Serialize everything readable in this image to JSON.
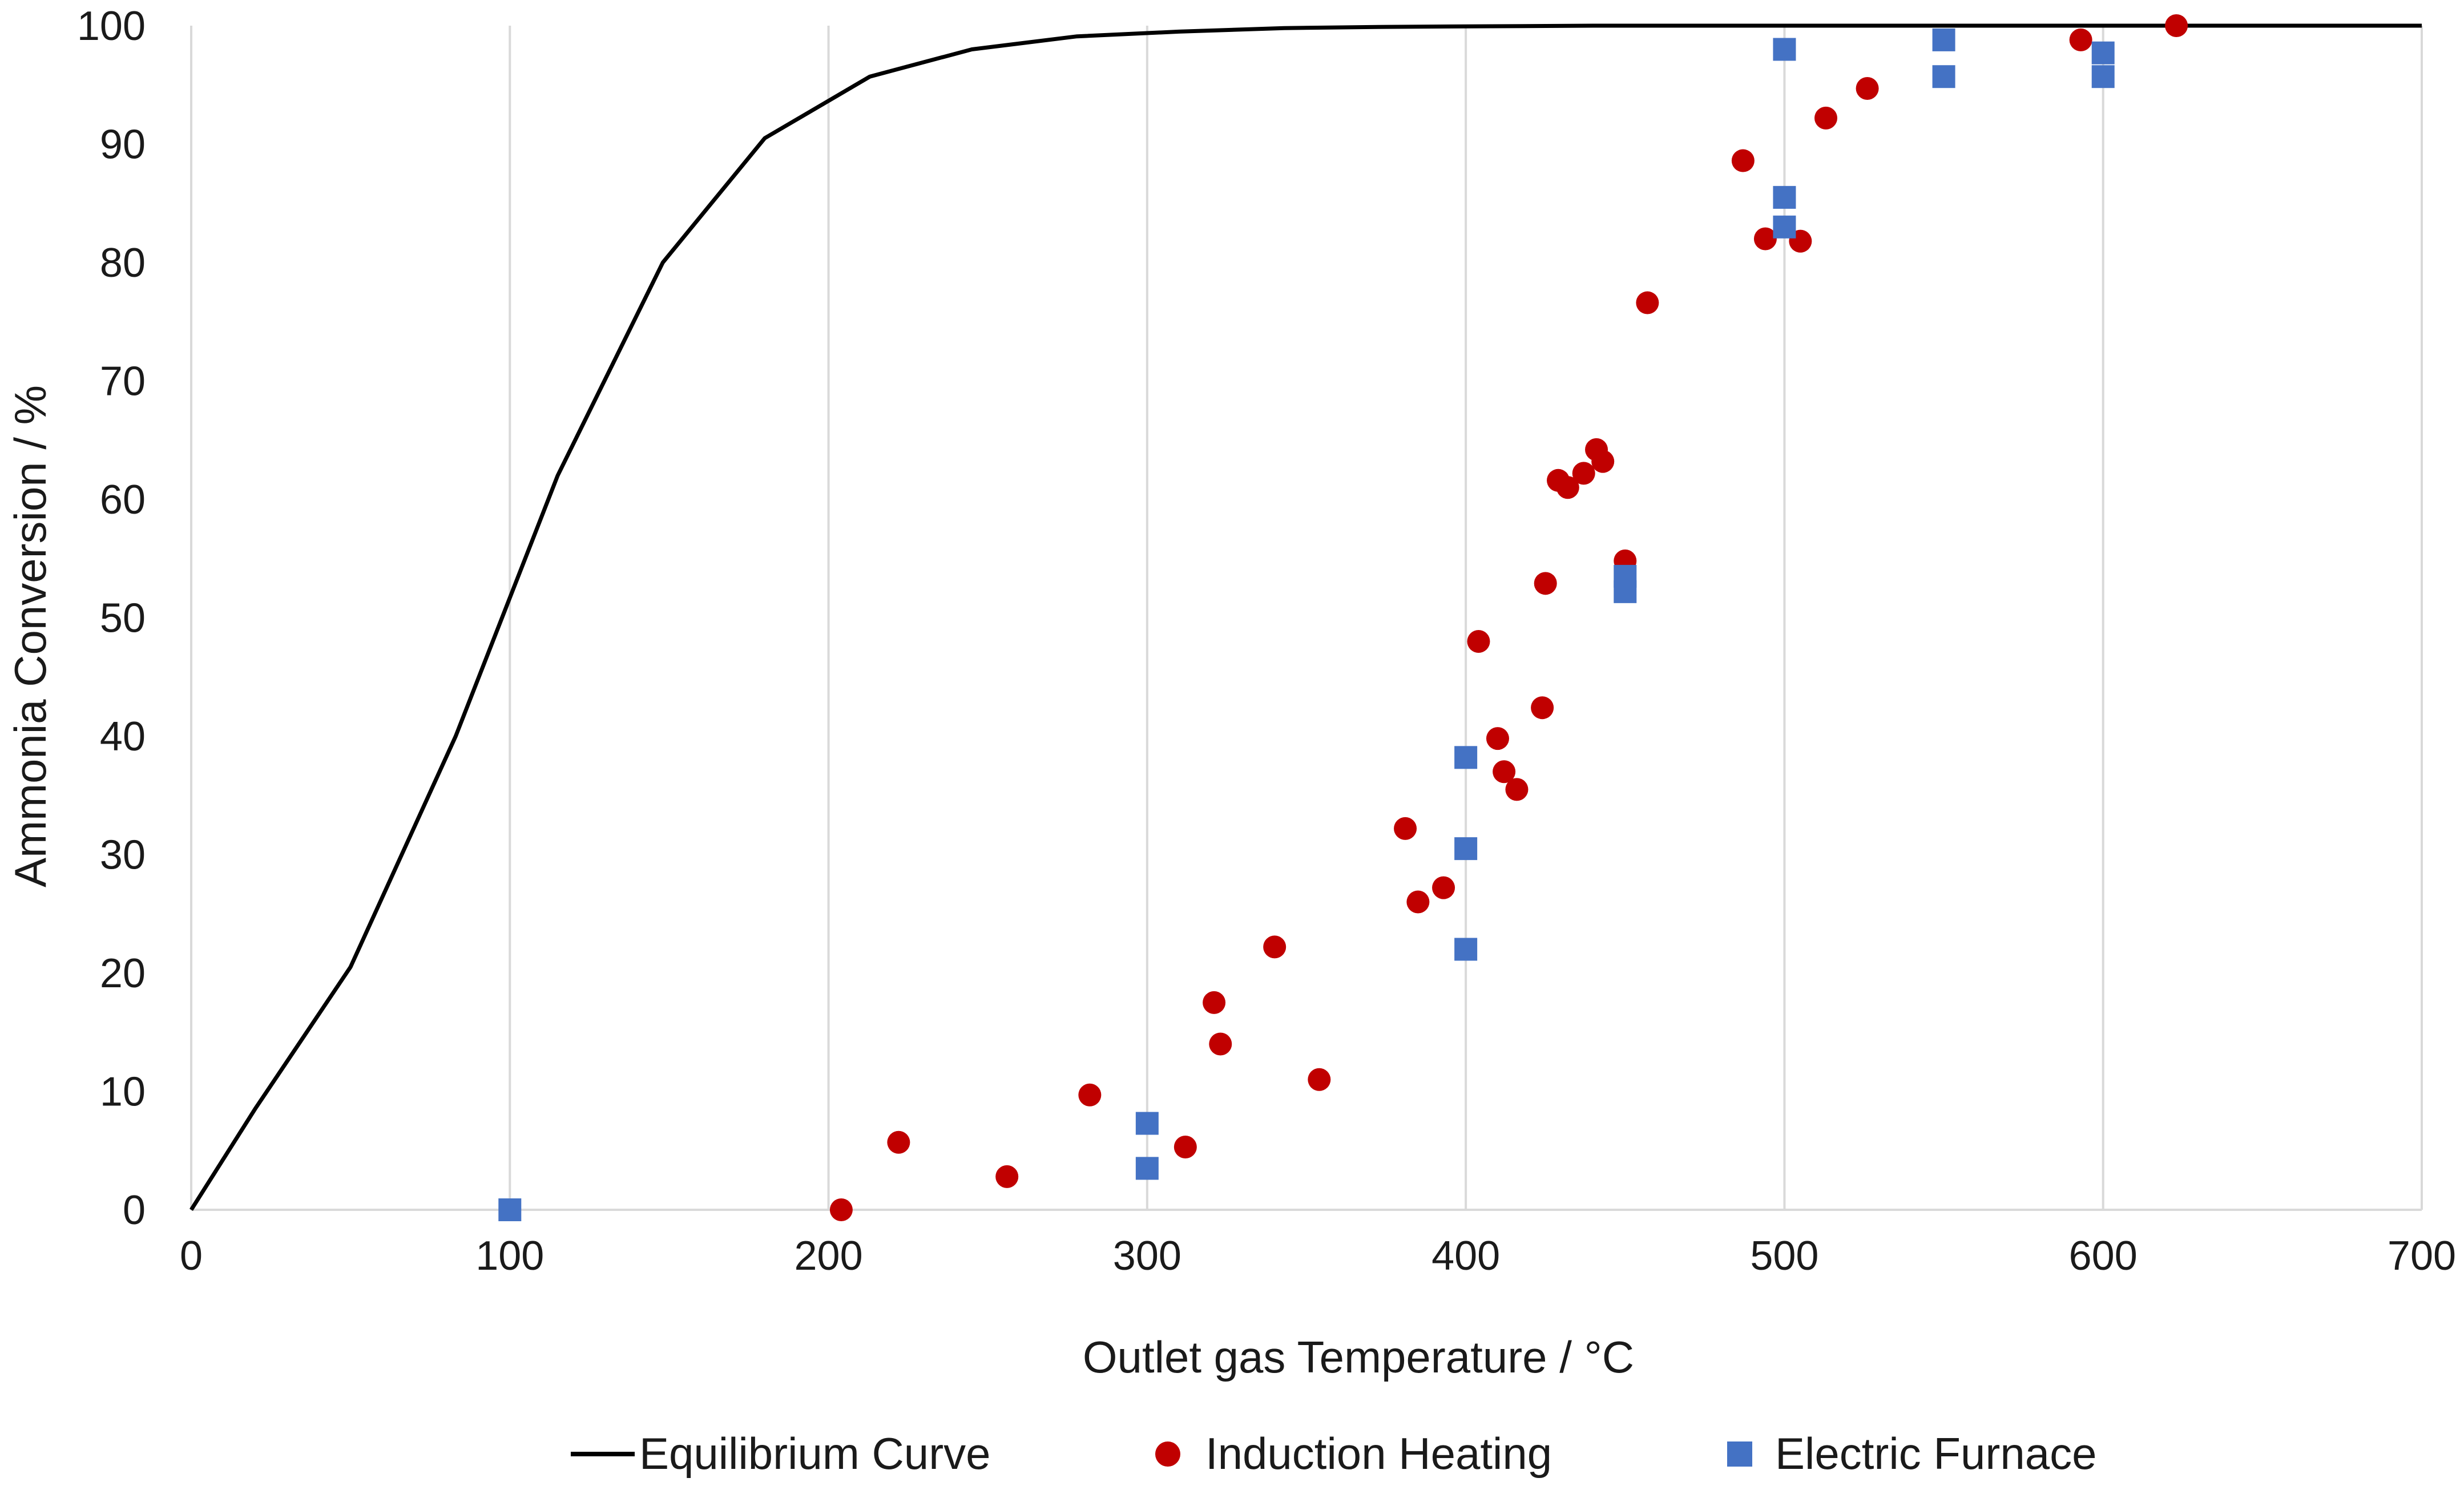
{
  "chart_data": {
    "type": "scatter",
    "title": "",
    "xlabel": "Outlet gas Temperature / °C",
    "ylabel": "Ammonia Conversion / %",
    "xlim": [
      0,
      700
    ],
    "ylim": [
      0,
      100
    ],
    "x_ticks": [
      0,
      100,
      200,
      300,
      400,
      500,
      600,
      700
    ],
    "y_ticks": [
      0,
      10,
      20,
      30,
      40,
      50,
      60,
      70,
      80,
      90,
      100
    ],
    "x_tick_labels": [
      "0",
      "100",
      "200",
      "300",
      "400",
      "500",
      "600",
      "700"
    ],
    "y_tick_labels": [
      "0",
      "10",
      "20",
      "30",
      "40",
      "50",
      "60",
      "70",
      "80",
      "90",
      "100"
    ],
    "grid": "vertical",
    "legend_position": "bottom",
    "series": [
      {
        "name": "Equilibrium Curve",
        "kind": "line",
        "color": "#000000",
        "x": [
          0,
          20,
          50,
          83,
          115,
          148,
          180,
          213,
          245,
          278,
          310,
          343,
          375,
          408,
          440,
          700
        ],
        "y": [
          0,
          8.5,
          20.5,
          40,
          62,
          80,
          90.5,
          95.7,
          98,
          99.1,
          99.5,
          99.8,
          99.9,
          99.95,
          100,
          100
        ]
      },
      {
        "name": "Induction Heating",
        "kind": "scatter",
        "marker": "circle",
        "color": "#c00000",
        "x": [
          204,
          222,
          256,
          282,
          312,
          321,
          323,
          340,
          354,
          381,
          385,
          393,
          404,
          410,
          412,
          416,
          424,
          425,
          429,
          432,
          437,
          441,
          443,
          450,
          457,
          487,
          494,
          505,
          513,
          526,
          593,
          623
        ],
        "y": [
          0,
          5.7,
          2.8,
          9.7,
          5.3,
          17.5,
          14,
          22.2,
          11,
          32.2,
          26,
          27.2,
          48,
          39.8,
          37,
          35.5,
          42.4,
          52.9,
          61.6,
          61,
          62.2,
          64.2,
          63.2,
          54.8,
          76.6,
          88.6,
          82,
          81.8,
          92.2,
          94.7,
          98.8,
          100
        ]
      },
      {
        "name": "Electric Furnace",
        "kind": "scatter",
        "marker": "square",
        "color": "#4472c4",
        "x": [
          100,
          300,
          300,
          400,
          400,
          400,
          450,
          450,
          500,
          500,
          500,
          550,
          550,
          600,
          600
        ],
        "y": [
          0,
          3.5,
          7.3,
          22,
          30.5,
          38.2,
          52.2,
          53.5,
          98,
          85.5,
          83,
          98.8,
          95.7,
          97.7,
          95.7
        ]
      }
    ]
  }
}
